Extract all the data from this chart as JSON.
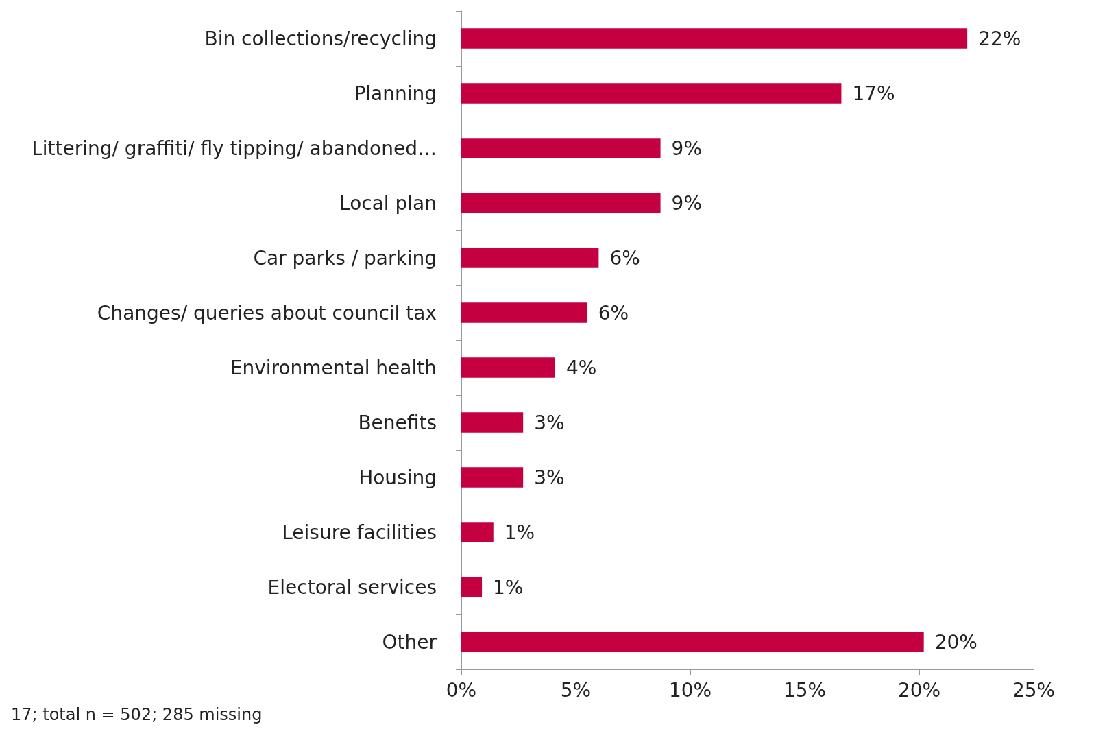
{
  "chart_data": {
    "type": "bar",
    "orientation": "horizontal",
    "categories": [
      "Bin collections/recycling",
      "Planning",
      "Littering/ graffiti/ fly tipping/ abandoned…",
      "Local plan",
      "Car parks / parking",
      "Changes/ queries about council tax",
      "Environmental health",
      "Benefits",
      "Housing",
      "Leisure facilities",
      "Electoral services",
      "Other"
    ],
    "values": [
      22.1,
      16.6,
      8.7,
      8.7,
      6.0,
      5.5,
      4.1,
      2.7,
      2.7,
      1.4,
      0.9,
      20.2
    ],
    "value_labels": [
      "22%",
      "17%",
      "9%",
      "9%",
      "6%",
      "6%",
      "4%",
      "3%",
      "3%",
      "1%",
      "1%",
      "20%"
    ],
    "color": "#c40040",
    "xlim": [
      0,
      25
    ],
    "xticks": [
      {
        "value": 0,
        "label": "0%"
      },
      {
        "value": 5,
        "label": "5%"
      },
      {
        "value": 10,
        "label": "10%"
      },
      {
        "value": 15,
        "label": "15%"
      },
      {
        "value": 20,
        "label": "20%"
      },
      {
        "value": 25,
        "label": "25%"
      }
    ],
    "grid": false,
    "annotations": [
      "17; total n = 502; 285 missing"
    ]
  }
}
